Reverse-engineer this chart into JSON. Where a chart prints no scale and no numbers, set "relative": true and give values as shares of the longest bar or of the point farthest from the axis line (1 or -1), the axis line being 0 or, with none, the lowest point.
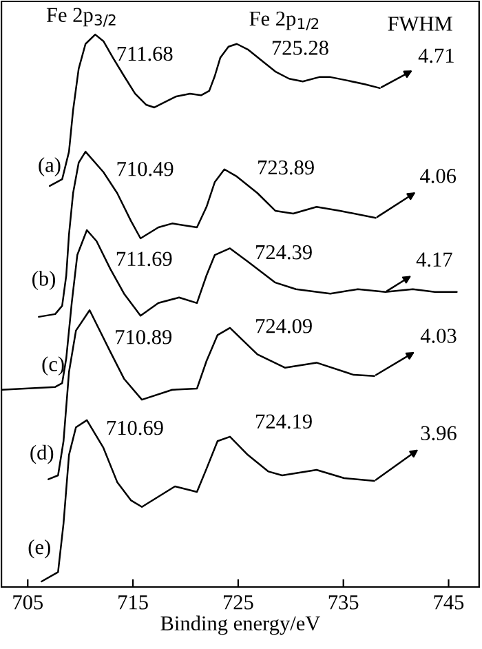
{
  "chart_data": {
    "type": "line",
    "relative": true,
    "xlabel": "Binding energy/eV",
    "xlim": [
      702.5,
      747.9
    ],
    "xticks": [
      705,
      715,
      725,
      735,
      745
    ],
    "series": [
      {
        "color": "#000000",
        "x": [
          707.09,
          708.27,
          708.92,
          709.31,
          709.84,
          710.49,
          711.41,
          712.19,
          713.1,
          714.15,
          715.2,
          716.24,
          717.03,
          718.07,
          719.12,
          720.42,
          721.47,
          722.25,
          722.78,
          723.3,
          724.08,
          724.87,
          725.92,
          727.22,
          728.53,
          729.84,
          731.14,
          732.71,
          733.76,
          735.07,
          737.03,
          738.46
        ],
        "values": [
          0.726,
          0.738,
          0.788,
          0.863,
          0.938,
          0.983,
          1.0,
          0.988,
          0.958,
          0.925,
          0.893,
          0.873,
          0.868,
          0.878,
          0.888,
          0.893,
          0.89,
          0.898,
          0.925,
          0.958,
          0.978,
          0.983,
          0.973,
          0.953,
          0.933,
          0.92,
          0.915,
          0.923,
          0.923,
          0.918,
          0.91,
          0.903
        ]
      },
      {
        "color": "#000000",
        "x": [
          706.05,
          707.61,
          708.27,
          708.66,
          708.92,
          709.31,
          709.84,
          710.49,
          712.19,
          713.5,
          714.8,
          715.72,
          717.42,
          718.73,
          721.08,
          721.99,
          722.78,
          723.69,
          724.87,
          726.83,
          728.53,
          730.23,
          732.45,
          734.67,
          738.07
        ],
        "values": [
          0.489,
          0.494,
          0.509,
          0.564,
          0.638,
          0.713,
          0.768,
          0.788,
          0.751,
          0.713,
          0.663,
          0.631,
          0.651,
          0.658,
          0.651,
          0.688,
          0.733,
          0.756,
          0.743,
          0.713,
          0.681,
          0.676,
          0.688,
          0.681,
          0.668
        ]
      },
      {
        "color": "#000000",
        "x": [
          702.5,
          707.61,
          708.27,
          708.66,
          709.18,
          709.71,
          710.62,
          711.54,
          712.84,
          714.15,
          715.72,
          717.42,
          719.38,
          721.08,
          721.99,
          722.78,
          724.22,
          725.92,
          728.53,
          730.49,
          733.76,
          736.37,
          738.99,
          741.6,
          743.69,
          745.78
        ],
        "values": [
          0.357,
          0.362,
          0.369,
          0.414,
          0.514,
          0.601,
          0.646,
          0.626,
          0.576,
          0.531,
          0.491,
          0.514,
          0.524,
          0.514,
          0.564,
          0.601,
          0.613,
          0.589,
          0.551,
          0.539,
          0.531,
          0.539,
          0.534,
          0.539,
          0.534,
          0.534
        ]
      },
      {
        "color": "#000000",
        "x": [
          706.96,
          707.88,
          708.4,
          708.92,
          709.58,
          710.88,
          712.84,
          714.15,
          715.85,
          718.73,
          721.08,
          721.99,
          723.04,
          724.22,
          726.83,
          729.44,
          732.45,
          735.98,
          737.94
        ],
        "values": [
          0.195,
          0.202,
          0.264,
          0.389,
          0.464,
          0.501,
          0.426,
          0.377,
          0.339,
          0.357,
          0.359,
          0.409,
          0.456,
          0.469,
          0.421,
          0.397,
          0.406,
          0.384,
          0.382
        ]
      },
      {
        "color": "#000000",
        "x": [
          706.31,
          707.88,
          708.4,
          708.92,
          709.58,
          710.62,
          712.19,
          713.5,
          714.8,
          715.85,
          718.99,
          721.08,
          721.99,
          723.04,
          724.22,
          725.92,
          727.88,
          729.18,
          732.45,
          735.07,
          737.94
        ],
        "values": [
          0.01,
          0.027,
          0.115,
          0.239,
          0.289,
          0.302,
          0.252,
          0.19,
          0.157,
          0.145,
          0.182,
          0.172,
          0.214,
          0.264,
          0.272,
          0.239,
          0.209,
          0.202,
          0.212,
          0.197,
          0.192
        ]
      }
    ],
    "annotations": [
      {
        "text": "Fe 2p$_{3/2}$",
        "x": 711.41,
        "y": 1.0
      },
      {
        "text": "Fe 2p$_{1/2}$",
        "x": 724.87,
        "y": 0.983
      },
      "FWHM",
      {
        "text": "711.68",
        "x": 711.41,
        "y": 1.0
      },
      {
        "text": "725.28",
        "x": 724.87,
        "y": 0.983
      },
      {
        "text": "4.71",
        "x": 738.46,
        "y": 0.903
      },
      {
        "text": "(a)",
        "x": 707.09,
        "y": 0.726
      },
      {
        "text": "710.49",
        "x": 710.49,
        "y": 0.788
      },
      {
        "text": "723.89",
        "x": 723.69,
        "y": 0.756
      },
      {
        "text": "4.06",
        "x": 738.07,
        "y": 0.668
      },
      {
        "text": "(b)",
        "x": 706.05,
        "y": 0.489
      },
      {
        "text": "711.69",
        "x": 710.62,
        "y": 0.646
      },
      {
        "text": "724.39",
        "x": 724.22,
        "y": 0.613
      },
      {
        "text": "4.17",
        "x": 738.99,
        "y": 0.534
      },
      {
        "text": "(c)",
        "x": 707.61,
        "y": 0.362
      },
      {
        "text": "710.89",
        "x": 710.88,
        "y": 0.501
      },
      {
        "text": "724.09",
        "x": 724.22,
        "y": 0.469
      },
      {
        "text": "4.03",
        "x": 737.94,
        "y": 0.382
      },
      {
        "text": "(d)",
        "x": 706.96,
        "y": 0.195
      },
      {
        "text": "710.69",
        "x": 710.62,
        "y": 0.302
      },
      {
        "text": "724.19",
        "x": 724.22,
        "y": 0.272
      },
      {
        "text": "3.96",
        "x": 737.94,
        "y": 0.192
      },
      {
        "text": "(e)",
        "x": 706.31,
        "y": 0.01
      }
    ]
  }
}
